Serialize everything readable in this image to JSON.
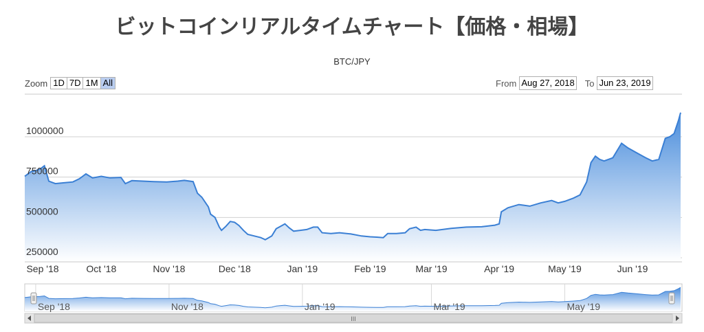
{
  "title": "ビットコインリアルタイムチャート【価格・相場】",
  "subtitle": "BTC/JPY",
  "zoom": {
    "label": "Zoom",
    "buttons": [
      "1D",
      "7D",
      "1M",
      "All"
    ],
    "active": "All"
  },
  "range": {
    "from_label": "From",
    "from_value": "Aug 27, 2018",
    "to_label": "To",
    "to_value": "Jun 23, 2019"
  },
  "navigator": {
    "scroll_label": "III",
    "labels": [
      "Sep '18",
      "Nov '18",
      "Jan '19",
      "Mar '19",
      "May '19"
    ]
  },
  "colors": {
    "line": "#3a7fd4",
    "area_top": "#4a8ddc",
    "area_bottom": "#ffffff",
    "grid": "#d0d0d0",
    "title": "#444444"
  },
  "chart_data": {
    "type": "area",
    "title": "BTC/JPY",
    "x_start": "2018-08-27",
    "x_end": "2019-06-23",
    "ylim": [
      250000,
      1150000
    ],
    "y_ticks": [
      "250000",
      "500000",
      "750000",
      "1000000"
    ],
    "x_ticks": [
      "Sep '18",
      "Oct '18",
      "Nov '18",
      "Dec '18",
      "Jan '19",
      "Feb '19",
      "Mar '19",
      "Apr '19",
      "May '19",
      "Jun '19"
    ],
    "grid": true,
    "series": [
      {
        "points": [
          [
            "2018-08-27",
            755000
          ],
          [
            "2018-08-30",
            785000
          ],
          [
            "2018-09-01",
            790000
          ],
          [
            "2018-09-03",
            800000
          ],
          [
            "2018-09-05",
            820000
          ],
          [
            "2018-09-07",
            725000
          ],
          [
            "2018-09-10",
            710000
          ],
          [
            "2018-09-14",
            715000
          ],
          [
            "2018-09-18",
            720000
          ],
          [
            "2018-09-21",
            740000
          ],
          [
            "2018-09-24",
            770000
          ],
          [
            "2018-09-27",
            745000
          ],
          [
            "2018-10-01",
            755000
          ],
          [
            "2018-10-05",
            745000
          ],
          [
            "2018-10-10",
            748000
          ],
          [
            "2018-10-12",
            710000
          ],
          [
            "2018-10-15",
            728000
          ],
          [
            "2018-10-20",
            725000
          ],
          [
            "2018-10-25",
            722000
          ],
          [
            "2018-10-31",
            720000
          ],
          [
            "2018-11-05",
            725000
          ],
          [
            "2018-11-08",
            730000
          ],
          [
            "2018-11-12",
            722000
          ],
          [
            "2018-11-14",
            650000
          ],
          [
            "2018-11-16",
            625000
          ],
          [
            "2018-11-19",
            565000
          ],
          [
            "2018-11-20",
            520000
          ],
          [
            "2018-11-22",
            500000
          ],
          [
            "2018-11-24",
            440000
          ],
          [
            "2018-11-25",
            420000
          ],
          [
            "2018-11-27",
            445000
          ],
          [
            "2018-11-29",
            475000
          ],
          [
            "2018-12-01",
            470000
          ],
          [
            "2018-12-03",
            450000
          ],
          [
            "2018-12-05",
            420000
          ],
          [
            "2018-12-07",
            395000
          ],
          [
            "2018-12-10",
            385000
          ],
          [
            "2018-12-13",
            375000
          ],
          [
            "2018-12-15",
            362000
          ],
          [
            "2018-12-18",
            385000
          ],
          [
            "2018-12-20",
            430000
          ],
          [
            "2018-12-22",
            445000
          ],
          [
            "2018-12-24",
            460000
          ],
          [
            "2018-12-26",
            435000
          ],
          [
            "2018-12-28",
            415000
          ],
          [
            "2018-12-31",
            420000
          ],
          [
            "2019-01-03",
            425000
          ],
          [
            "2019-01-06",
            440000
          ],
          [
            "2019-01-08",
            440000
          ],
          [
            "2019-01-10",
            405000
          ],
          [
            "2019-01-14",
            400000
          ],
          [
            "2019-01-18",
            405000
          ],
          [
            "2019-01-23",
            398000
          ],
          [
            "2019-01-28",
            385000
          ],
          [
            "2019-02-01",
            380000
          ],
          [
            "2019-02-04",
            378000
          ],
          [
            "2019-02-07",
            375000
          ],
          [
            "2019-02-09",
            400000
          ],
          [
            "2019-02-13",
            400000
          ],
          [
            "2019-02-17",
            405000
          ],
          [
            "2019-02-19",
            430000
          ],
          [
            "2019-02-22",
            440000
          ],
          [
            "2019-02-24",
            420000
          ],
          [
            "2019-02-26",
            425000
          ],
          [
            "2019-03-03",
            420000
          ],
          [
            "2019-03-10",
            432000
          ],
          [
            "2019-03-17",
            440000
          ],
          [
            "2019-03-24",
            442000
          ],
          [
            "2019-03-30",
            452000
          ],
          [
            "2019-04-01",
            460000
          ],
          [
            "2019-04-02",
            535000
          ],
          [
            "2019-04-05",
            560000
          ],
          [
            "2019-04-10",
            580000
          ],
          [
            "2019-04-15",
            570000
          ],
          [
            "2019-04-20",
            590000
          ],
          [
            "2019-04-25",
            605000
          ],
          [
            "2019-04-28",
            590000
          ],
          [
            "2019-05-01",
            600000
          ],
          [
            "2019-05-05",
            620000
          ],
          [
            "2019-05-08",
            640000
          ],
          [
            "2019-05-11",
            720000
          ],
          [
            "2019-05-13",
            840000
          ],
          [
            "2019-05-15",
            880000
          ],
          [
            "2019-05-17",
            860000
          ],
          [
            "2019-05-19",
            850000
          ],
          [
            "2019-05-23",
            870000
          ],
          [
            "2019-05-27",
            960000
          ],
          [
            "2019-05-30",
            930000
          ],
          [
            "2019-06-03",
            900000
          ],
          [
            "2019-06-07",
            870000
          ],
          [
            "2019-06-10",
            850000
          ],
          [
            "2019-06-13",
            860000
          ],
          [
            "2019-06-16",
            990000
          ],
          [
            "2019-06-18",
            1000000
          ],
          [
            "2019-06-20",
            1020000
          ],
          [
            "2019-06-22",
            1100000
          ],
          [
            "2019-06-23",
            1150000
          ]
        ]
      }
    ]
  }
}
